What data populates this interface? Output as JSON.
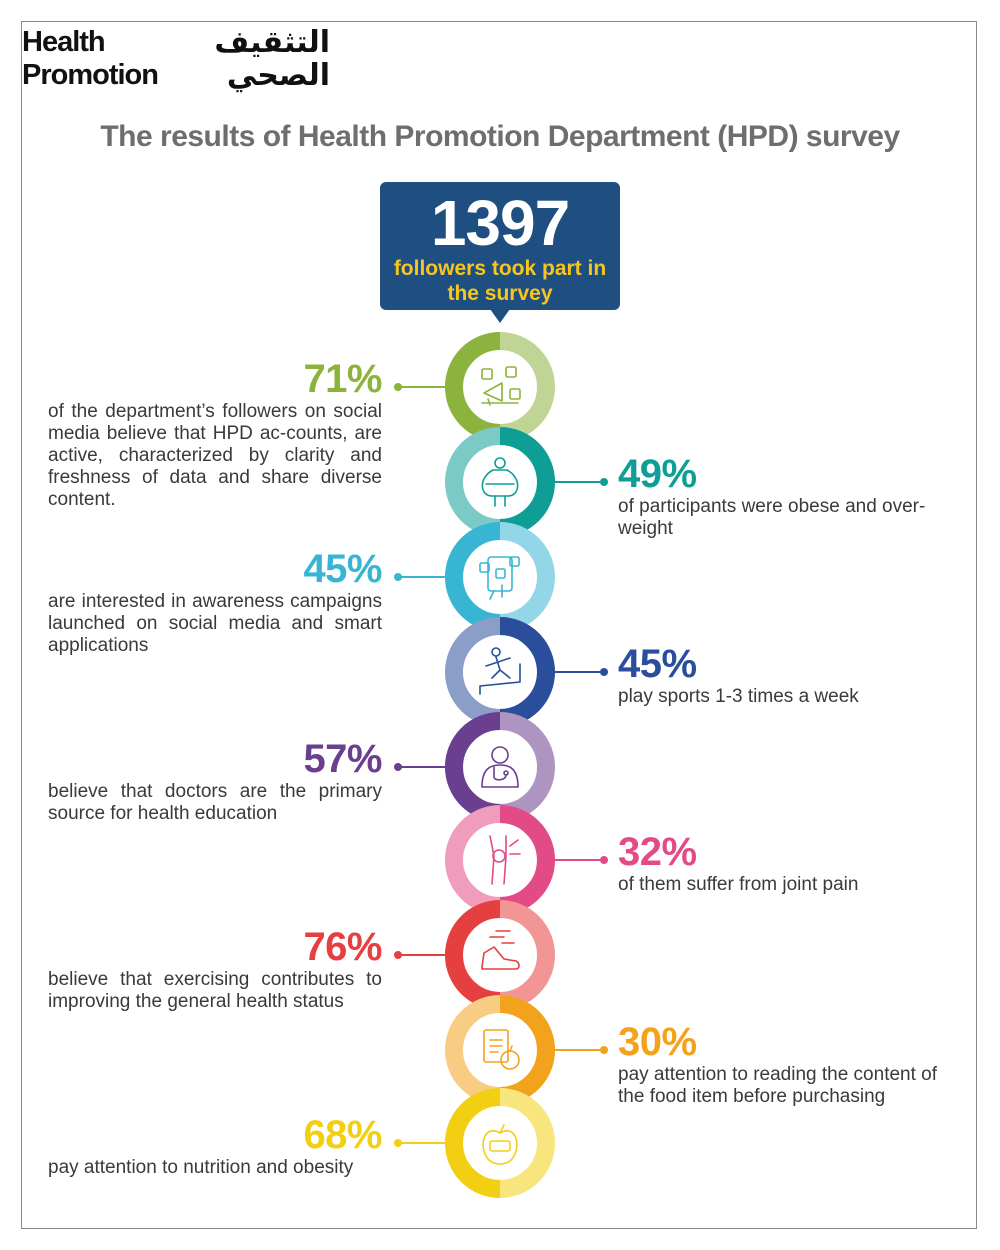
{
  "logo": {
    "english_line1": "Health",
    "english_line2": "Promotion",
    "arabic_line1": "التثقيف",
    "arabic_line2": "الصحي"
  },
  "title": "The results of Health Promotion Department (HPD) survey",
  "callout": {
    "number": "1397",
    "label": "followers took part in the survey",
    "bg_color": "#1f4f81",
    "label_color": "#f7c51e"
  },
  "stats": [
    {
      "side": "left",
      "percent": "71%",
      "color": "#8db33f",
      "icon": "social-media-megaphone-icon",
      "text": "of the department’s followers on social media believe that HPD ac-counts, are active, characterized by clarity and freshness of data and share diverse content."
    },
    {
      "side": "right",
      "percent": "49%",
      "color": "#0f9e96",
      "icon": "obese-person-icon",
      "text": "of participants were  obese and over-weight"
    },
    {
      "side": "left",
      "percent": "45%",
      "color": "#39b5d4",
      "icon": "smartphone-apps-icon",
      "text": "are interested in awareness campaigns launched on social media and smart applications"
    },
    {
      "side": "right",
      "percent": "45%",
      "color": "#2a4e9b",
      "icon": "treadmill-runner-icon",
      "text": "play sports 1-3  times a week"
    },
    {
      "side": "left",
      "percent": "57%",
      "color": "#6b3f8f",
      "icon": "doctor-icon",
      "text": "believe that doctors are the primary source for health education"
    },
    {
      "side": "right",
      "percent": "32%",
      "color": "#e34b87",
      "icon": "knee-joint-icon",
      "text": "of them suffer from joint pain"
    },
    {
      "side": "left",
      "percent": "76%",
      "color": "#e63f3f",
      "icon": "running-shoe-icon",
      "text": "believe that exercising contributes to improving the general health status"
    },
    {
      "side": "right",
      "percent": "30%",
      "color": "#f3a21b",
      "icon": "clipboard-apple-icon",
      "text": "pay attention to reading the content of the food  item before purchasing"
    },
    {
      "side": "left",
      "percent": "68%",
      "color": "#f2cf12",
      "icon": "apple-scale-icon",
      "text": "pay attention to nutrition  and obesity"
    }
  ]
}
